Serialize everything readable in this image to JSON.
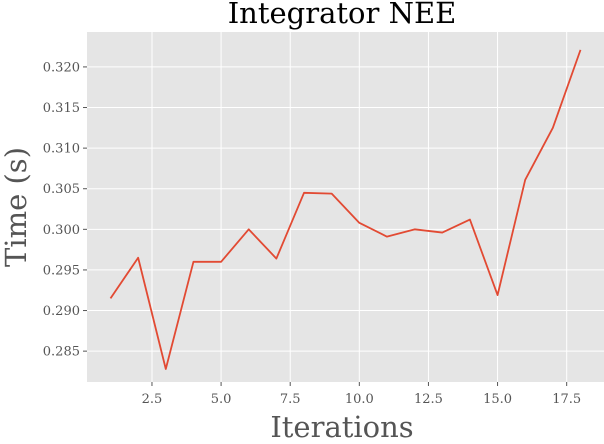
{
  "chart_data": {
    "type": "line",
    "title": "Integrator NEE",
    "xlabel": "Iterations",
    "ylabel": "Time (s)",
    "xlim": [
      0.15,
      18.85
    ],
    "ylim": [
      0.2812,
      0.3243
    ],
    "xticks": [
      2.5,
      5.0,
      7.5,
      10.0,
      12.5,
      15.0,
      17.5
    ],
    "xtick_labels": [
      "2.5",
      "5.0",
      "7.5",
      "10.0",
      "12.5",
      "15.0",
      "17.5"
    ],
    "yticks": [
      0.285,
      0.29,
      0.295,
      0.3,
      0.305,
      0.31,
      0.315,
      0.32
    ],
    "ytick_labels": [
      "0.285",
      "0.290",
      "0.295",
      "0.300",
      "0.305",
      "0.310",
      "0.315",
      "0.320"
    ],
    "grid": true,
    "background_color": "#e5e5e5",
    "series": [
      {
        "color": "#e24a33",
        "x": [
          1,
          2,
          3,
          4,
          5,
          6,
          7,
          8,
          9,
          10,
          11,
          12,
          13,
          14,
          15,
          16,
          17,
          18
        ],
        "y": [
          0.2915,
          0.2965,
          0.2828,
          0.296,
          0.296,
          0.3,
          0.2964,
          0.3045,
          0.3044,
          0.3008,
          0.2991,
          0.3,
          0.2996,
          0.3012,
          0.2919,
          0.3061,
          0.3125,
          0.3221
        ]
      }
    ]
  }
}
